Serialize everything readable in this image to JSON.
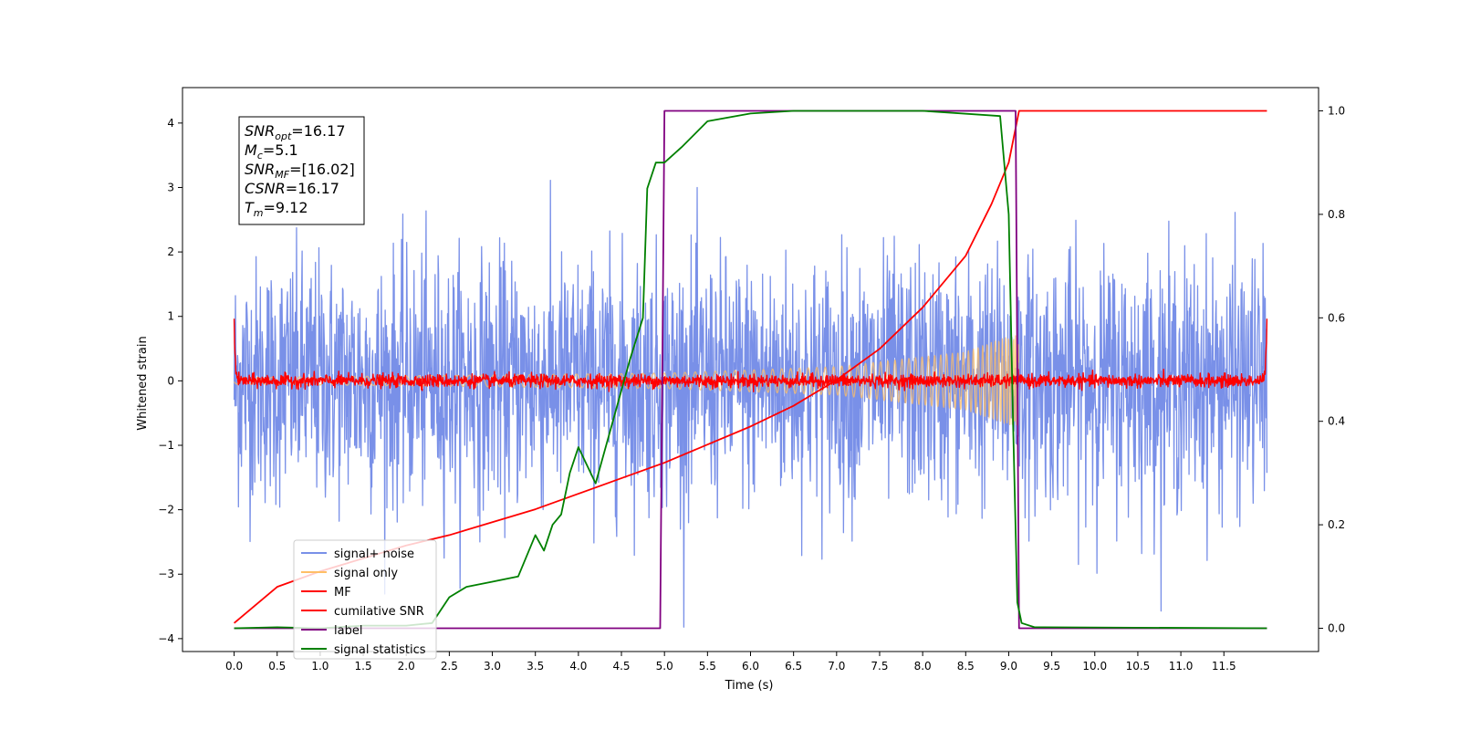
{
  "chart_data": {
    "type": "line",
    "xlabel": "Time (s)",
    "ylabel": "Whitened strain",
    "ylabel_right": "",
    "xlim": [
      -0.6,
      12.6
    ],
    "ylim": [
      -4.2,
      4.55
    ],
    "ylim_right": [
      -0.045,
      1.045
    ],
    "x_ticks": [
      "0.0",
      "0.5",
      "1.0",
      "1.5",
      "2.0",
      "2.5",
      "3.0",
      "3.5",
      "4.0",
      "4.5",
      "5.0",
      "5.5",
      "6.0",
      "6.5",
      "7.0",
      "7.5",
      "8.0",
      "8.5",
      "9.0",
      "9.5",
      "10.0",
      "10.5",
      "11.0",
      "11.5"
    ],
    "y_ticks": [
      "4",
      "3",
      "2",
      "1",
      "0",
      "−1",
      "−2",
      "−3",
      "−4"
    ],
    "y_ticks_right": [
      "1.0",
      "0.8",
      "0.6",
      "0.4",
      "0.2",
      "0.0"
    ],
    "grid": false,
    "legend_position": "lower-left",
    "annotations": [
      {
        "name": "SNR",
        "sub": "opt",
        "value": "=16.17"
      },
      {
        "name": "M",
        "sub": "c",
        "value": "=5.1"
      },
      {
        "name": "SNR",
        "sub": "MF",
        "value": "=[16.02]"
      },
      {
        "name": "CSNR",
        "sub": "",
        "value": "=16.17"
      },
      {
        "name": "T",
        "sub": "m",
        "value": "=9.12"
      }
    ],
    "series": [
      {
        "name": "signal+ noise",
        "color": "#7990e8",
        "axis": "left",
        "kind": "noise",
        "x_range": [
          0,
          12
        ],
        "amplitude_std": 0.95
      },
      {
        "name": "signal only",
        "color": "#ffbf66",
        "axis": "left",
        "kind": "chirp",
        "x_range": [
          0,
          9.12
        ],
        "envelope": [
          [
            0,
            0.05
          ],
          [
            5,
            0.12
          ],
          [
            7,
            0.22
          ],
          [
            8.5,
            0.45
          ],
          [
            9.12,
            0.75
          ]
        ]
      },
      {
        "name": "MF",
        "color": "#ff0000",
        "axis": "left",
        "kind": "noise",
        "x_range": [
          0,
          12
        ],
        "amplitude_std": 0.05,
        "endpoints": [
          1.0,
          0.95
        ]
      },
      {
        "name": "cumilative SNR",
        "color": "#ff0000",
        "axis": "right",
        "x": [
          0,
          0.5,
          1.0,
          1.5,
          2.0,
          2.5,
          3.0,
          3.5,
          4.0,
          4.5,
          5.0,
          5.5,
          6.0,
          6.5,
          7.0,
          7.5,
          8.0,
          8.5,
          8.8,
          9.0,
          9.12,
          12.0
        ],
        "values": [
          0.01,
          0.08,
          0.11,
          0.135,
          0.16,
          0.18,
          0.205,
          0.23,
          0.26,
          0.29,
          0.32,
          0.355,
          0.39,
          0.43,
          0.48,
          0.54,
          0.62,
          0.72,
          0.82,
          0.9,
          1.0,
          1.0
        ]
      },
      {
        "name": "label",
        "color": "#800080",
        "axis": "right",
        "x": [
          0,
          4.95,
          5.0,
          9.08,
          9.12,
          12.0
        ],
        "values": [
          0,
          0,
          1,
          1,
          0,
          0
        ]
      },
      {
        "name": "signal statistics",
        "color": "#008000",
        "axis": "right",
        "x": [
          0,
          0.5,
          1.0,
          1.5,
          2.0,
          2.3,
          2.5,
          2.7,
          3.0,
          3.3,
          3.5,
          3.6,
          3.7,
          3.8,
          3.9,
          4.0,
          4.2,
          4.4,
          4.6,
          4.75,
          4.8,
          4.9,
          5.0,
          5.2,
          5.5,
          6.0,
          6.5,
          7.0,
          8.0,
          8.9,
          9.0,
          9.05,
          9.1,
          9.15,
          9.3,
          12.0
        ],
        "values": [
          0,
          0.002,
          0,
          0.005,
          0.005,
          0.01,
          0.06,
          0.08,
          0.09,
          0.1,
          0.18,
          0.15,
          0.2,
          0.22,
          0.3,
          0.35,
          0.28,
          0.4,
          0.52,
          0.6,
          0.85,
          0.9,
          0.9,
          0.93,
          0.98,
          0.995,
          1.0,
          1.0,
          1.0,
          0.99,
          0.8,
          0.4,
          0.05,
          0.01,
          0.002,
          0
        ]
      }
    ]
  }
}
